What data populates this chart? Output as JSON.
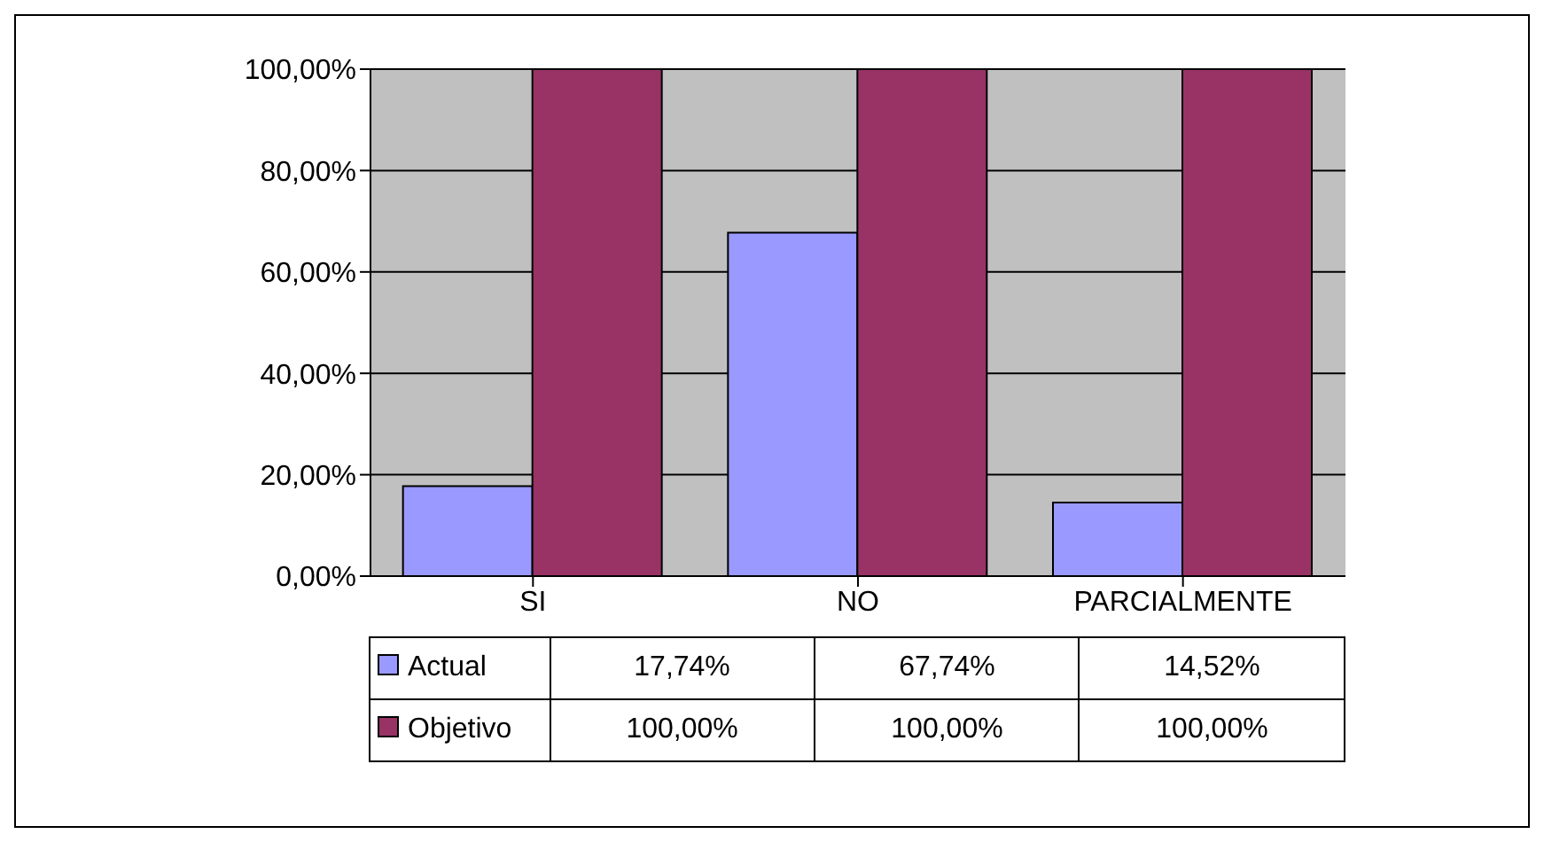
{
  "chart_data": {
    "type": "bar",
    "categories": [
      "SI",
      "NO",
      "PARCIALMENTE"
    ],
    "series": [
      {
        "name": "Actual",
        "color": "#9999ff",
        "values": [
          17.74,
          67.74,
          14.52
        ],
        "value_labels": [
          "17,74%",
          "67,74%",
          "14,52%"
        ]
      },
      {
        "name": "Objetivo",
        "color": "#993366",
        "values": [
          100,
          100,
          100
        ],
        "value_labels": [
          "100,00%",
          "100,00%",
          "100,00%"
        ]
      }
    ],
    "ylim": [
      0,
      100
    ],
    "yticks": [
      {
        "value": 0,
        "label": "0,00%"
      },
      {
        "value": 20,
        "label": "20,00%"
      },
      {
        "value": 40,
        "label": "40,00%"
      },
      {
        "value": 60,
        "label": "60,00%"
      },
      {
        "value": 80,
        "label": "80,00%"
      },
      {
        "value": 100,
        "label": "100,00%"
      }
    ],
    "grid": "y",
    "legend": "bottom left"
  }
}
